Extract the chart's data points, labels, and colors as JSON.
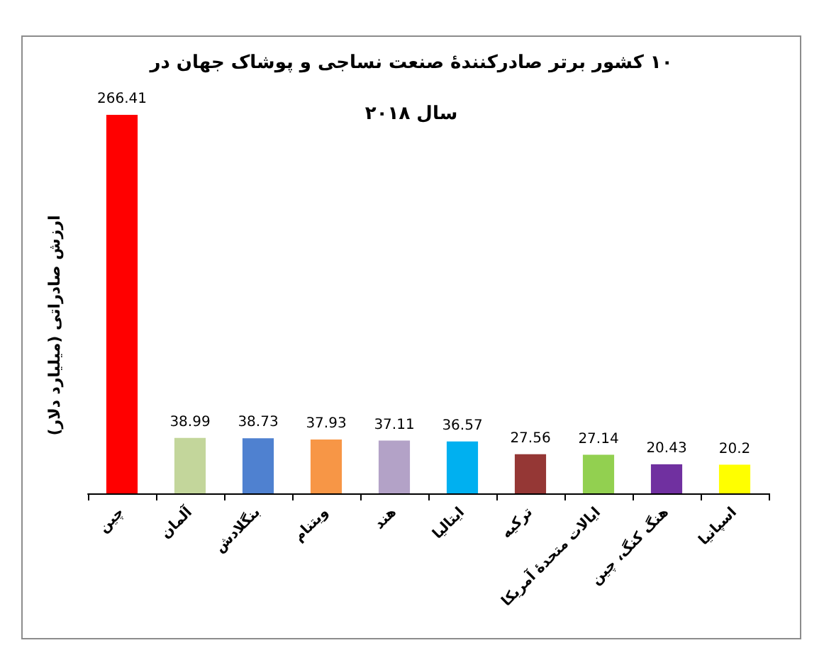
{
  "chart_data": {
    "type": "bar",
    "title": "۱۰ کشور برتر صادرکنندهٔ صنعت نساجی و پوشاک جهان در سال ۲۰۱۸",
    "ylabel": "ارزش صادراتی (میلیارد دلار)",
    "categories": [
      "چین",
      "آلمان",
      "بنگلادش",
      "ویتنام",
      "هند",
      "ایتالیا",
      "ترکیه",
      "ایالات متحدهٔ آمریکا",
      "هنگ کنگ، چین",
      "اسپانیا"
    ],
    "values": [
      266.41,
      38.99,
      38.73,
      37.93,
      37.11,
      36.57,
      27.56,
      27.14,
      20.43,
      20.2
    ],
    "colors": [
      "#ff0000",
      "#c3d69b",
      "#4f81d0",
      "#f79646",
      "#b3a2c7",
      "#00b0f0",
      "#953735",
      "#92d050",
      "#7030a0",
      "#ffff00"
    ],
    "data_labels": true,
    "grid": false
  }
}
